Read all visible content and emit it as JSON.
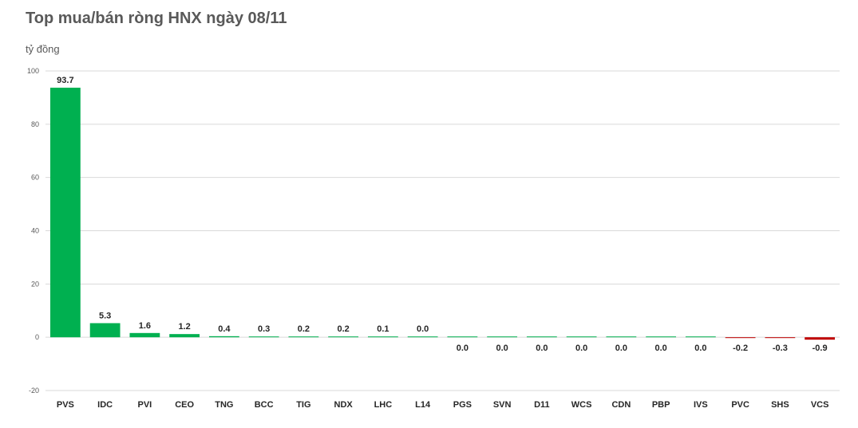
{
  "header": {
    "title": "Top mua/bán ròng HNX ngày 08/11",
    "unit": "tỷ đồng"
  },
  "colors": {
    "positive": "#00B050",
    "negative": "#C00000",
    "grid": "#D9D9D9"
  },
  "chart_data": {
    "type": "bar",
    "title": "Top mua/bán ròng HNX ngày 08/11",
    "ylabel": "tỷ đồng",
    "xlabel": "",
    "ylim": [
      -20,
      100
    ],
    "yticks": [
      -20,
      0,
      20,
      40,
      60,
      80,
      100
    ],
    "grid": true,
    "categories": [
      "PVS",
      "IDC",
      "PVI",
      "CEO",
      "TNG",
      "BCC",
      "TIG",
      "NDX",
      "LHC",
      "L14",
      "PGS",
      "SVN",
      "D11",
      "WCS",
      "CDN",
      "PBP",
      "IVS",
      "PVC",
      "SHS",
      "VCS"
    ],
    "values": [
      93.7,
      5.3,
      1.6,
      1.2,
      0.4,
      0.3,
      0.2,
      0.2,
      0.1,
      0.0,
      0.0,
      0.0,
      0.0,
      0.0,
      0.0,
      0.0,
      0.0,
      -0.2,
      -0.3,
      -0.9
    ],
    "labels": [
      "93.7",
      "5.3",
      "1.6",
      "1.2",
      "0.4",
      "0.3",
      "0.2",
      "0.2",
      "0.1",
      "0.0",
      "0.0",
      "0.0",
      "0.0",
      "0.0",
      "0.0",
      "0.0",
      "0.0",
      "-0.2",
      "-0.3",
      "-0.9"
    ]
  }
}
